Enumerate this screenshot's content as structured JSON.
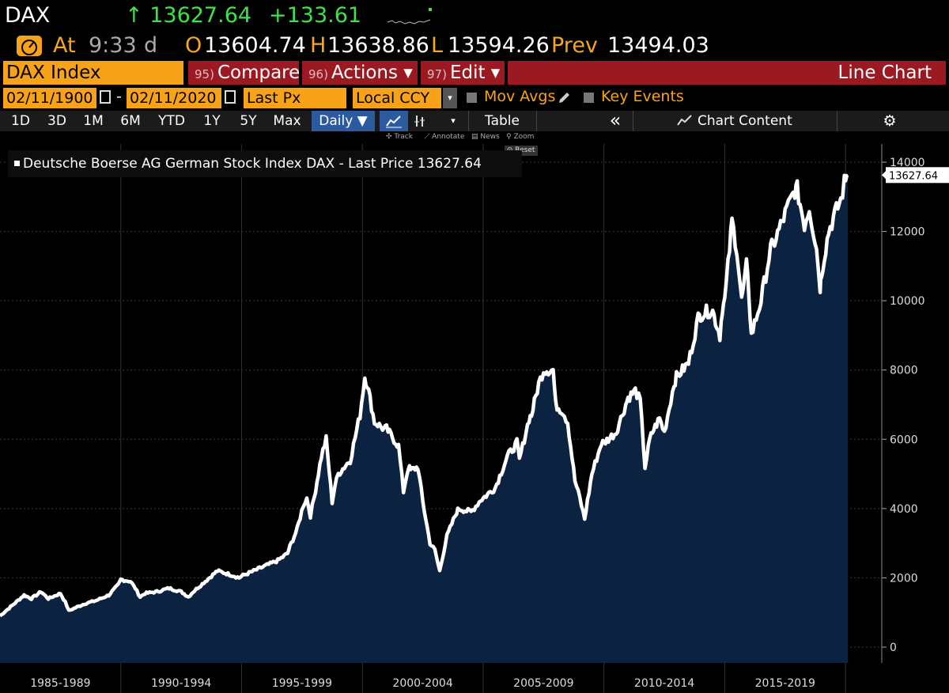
{
  "header": {
    "ticker": "DAX",
    "last_price": "13627.64",
    "arrow": "↑",
    "net_change": "+133.61",
    "time_label": "At",
    "time_value": "9:33",
    "time_suffix": "d",
    "open_label": "O",
    "open_value": "13604.74",
    "high_label": "H",
    "high_value": "13638.86",
    "low_label": "L",
    "low_value": "13594.26",
    "prev_label": "Prev",
    "prev_value": "13494.03"
  },
  "toolbar": {
    "security": "DAX Index",
    "compare_num": "95)",
    "compare_label": "Compare",
    "actions_num": "96)",
    "actions_label": "Actions ▾",
    "edit_num": "97)",
    "edit_label": "Edit ▾",
    "chart_type": "Line Chart"
  },
  "settings": {
    "start_date": "02/11/1900",
    "dash": "-",
    "end_date": "02/11/2020",
    "field": "Last Px",
    "currency": "Local CCY",
    "mov_avgs": "Mov Avgs",
    "key_events": "Key Events"
  },
  "timeframes": [
    "1D",
    "3D",
    "1M",
    "6M",
    "YTD",
    "1Y",
    "5Y",
    "Max"
  ],
  "periodicity": "Daily ▼",
  "table_label": "Table",
  "collapse_label": "«",
  "chart_content_label": "Chart Content",
  "tools": {
    "track": "Track",
    "annotate": "Annotate",
    "news": "News",
    "zoom": "Zoom",
    "reset": "Reset"
  },
  "colors": {
    "up_green": "#3fe24a",
    "orange": "#f8a21a",
    "red_button": "#9b1a21",
    "line": "#ffffff",
    "fill": "#0b2240"
  },
  "chart_data": {
    "type": "area",
    "title": "Deutsche Boerse AG German Stock Index DAX - Last Price",
    "legend_label": "Deutsche Boerse AG German Stock Index DAX - Last Price 13627.64",
    "last_value": 13627.64,
    "last_value_label": "13627.64",
    "x_range": [
      1985.0,
      2021.5
    ],
    "ylim": [
      0,
      14500
    ],
    "yticks": [
      0,
      2000,
      4000,
      6000,
      8000,
      10000,
      12000,
      14000
    ],
    "ytick_labels": [
      "0",
      "2000",
      "4000",
      "6000",
      "8000",
      "10000",
      "12000",
      "14000"
    ],
    "x_bins": [
      {
        "label": "1985-1989",
        "start": 1985,
        "end": 1990
      },
      {
        "label": "1990-1994",
        "start": 1990,
        "end": 1995
      },
      {
        "label": "1995-1999",
        "start": 1995,
        "end": 2000
      },
      {
        "label": "2000-2004",
        "start": 2000,
        "end": 2005
      },
      {
        "label": "2005-2009",
        "start": 2005,
        "end": 2010
      },
      {
        "label": "2010-2014",
        "start": 2010,
        "end": 2015
      },
      {
        "label": "2015-2019",
        "start": 2015,
        "end": 2020
      }
    ],
    "series": [
      {
        "name": "DAX",
        "x": [
          1985.0,
          1985.5,
          1986.0,
          1986.3,
          1986.7,
          1987.0,
          1987.5,
          1987.7,
          1987.85,
          1988.0,
          1988.5,
          1989.0,
          1989.5,
          1989.9,
          1990.0,
          1990.4,
          1990.6,
          1990.8,
          1991.0,
          1991.5,
          1992.0,
          1992.5,
          1992.8,
          1993.0,
          1993.5,
          1994.0,
          1994.5,
          1994.9,
          1995.0,
          1995.5,
          1996.0,
          1996.5,
          1996.9,
          1997.0,
          1997.3,
          1997.55,
          1997.7,
          1997.85,
          1998.0,
          1998.3,
          1998.5,
          1998.75,
          1998.85,
          1999.0,
          1999.5,
          1999.9,
          2000.1,
          2000.2,
          2000.5,
          2000.9,
          2001.0,
          2001.5,
          2001.7,
          2001.9,
          2002.0,
          2002.3,
          2002.5,
          2002.8,
          2003.0,
          2003.2,
          2003.5,
          2003.9,
          2004.0,
          2004.5,
          2004.9,
          2005.0,
          2005.5,
          2006.0,
          2006.4,
          2006.5,
          2006.9,
          2007.0,
          2007.3,
          2007.5,
          2007.9,
          2008.0,
          2008.3,
          2008.5,
          2008.8,
          2009.0,
          2009.2,
          2009.5,
          2009.9,
          2010.0,
          2010.5,
          2010.9,
          2011.0,
          2011.3,
          2011.5,
          2011.7,
          2011.9,
          2012.0,
          2012.3,
          2012.5,
          2012.9,
          2013.0,
          2013.5,
          2013.9,
          2014.0,
          2014.3,
          2014.5,
          2014.8,
          2014.9,
          2015.0,
          2015.2,
          2015.3,
          2015.5,
          2015.7,
          2015.9,
          2016.0,
          2016.1,
          2016.5,
          2016.9,
          2017.0,
          2017.5,
          2017.9,
          2018.0,
          2018.3,
          2018.5,
          2018.8,
          2018.95,
          2019.0,
          2019.3,
          2019.5,
          2019.8,
          2019.95,
          2020.0,
          2020.1
        ],
        "y": [
          900,
          1200,
          1500,
          1400,
          1600,
          1400,
          1550,
          1300,
          1050,
          1100,
          1250,
          1350,
          1500,
          1800,
          1950,
          1900,
          1700,
          1450,
          1550,
          1600,
          1700,
          1600,
          1450,
          1600,
          1900,
          2200,
          2100,
          2000,
          2050,
          2200,
          2350,
          2500,
          2700,
          2900,
          3400,
          4100,
          4300,
          3800,
          4300,
          5500,
          6000,
          4200,
          4600,
          5000,
          5400,
          6700,
          7800,
          7600,
          6500,
          6300,
          6300,
          5800,
          4500,
          5200,
          5100,
          5200,
          4200,
          3000,
          2800,
          2200,
          3200,
          3900,
          4000,
          3900,
          4250,
          4300,
          4600,
          5500,
          5900,
          5400,
          6600,
          6700,
          7600,
          8000,
          8000,
          7000,
          6800,
          6500,
          4800,
          4300,
          3700,
          5000,
          5900,
          5900,
          6200,
          7000,
          7200,
          7400,
          7100,
          5200,
          6000,
          6200,
          6600,
          6200,
          7600,
          7800,
          8200,
          9500,
          9600,
          9700,
          9700,
          9000,
          9800,
          10000,
          11500,
          12300,
          11500,
          10000,
          11000,
          10200,
          9000,
          10000,
          11500,
          11600,
          12500,
          13200,
          13200,
          12200,
          12700,
          11500,
          10400,
          10800,
          12000,
          12400,
          12900,
          13400,
          13600,
          13627
        ]
      }
    ]
  }
}
